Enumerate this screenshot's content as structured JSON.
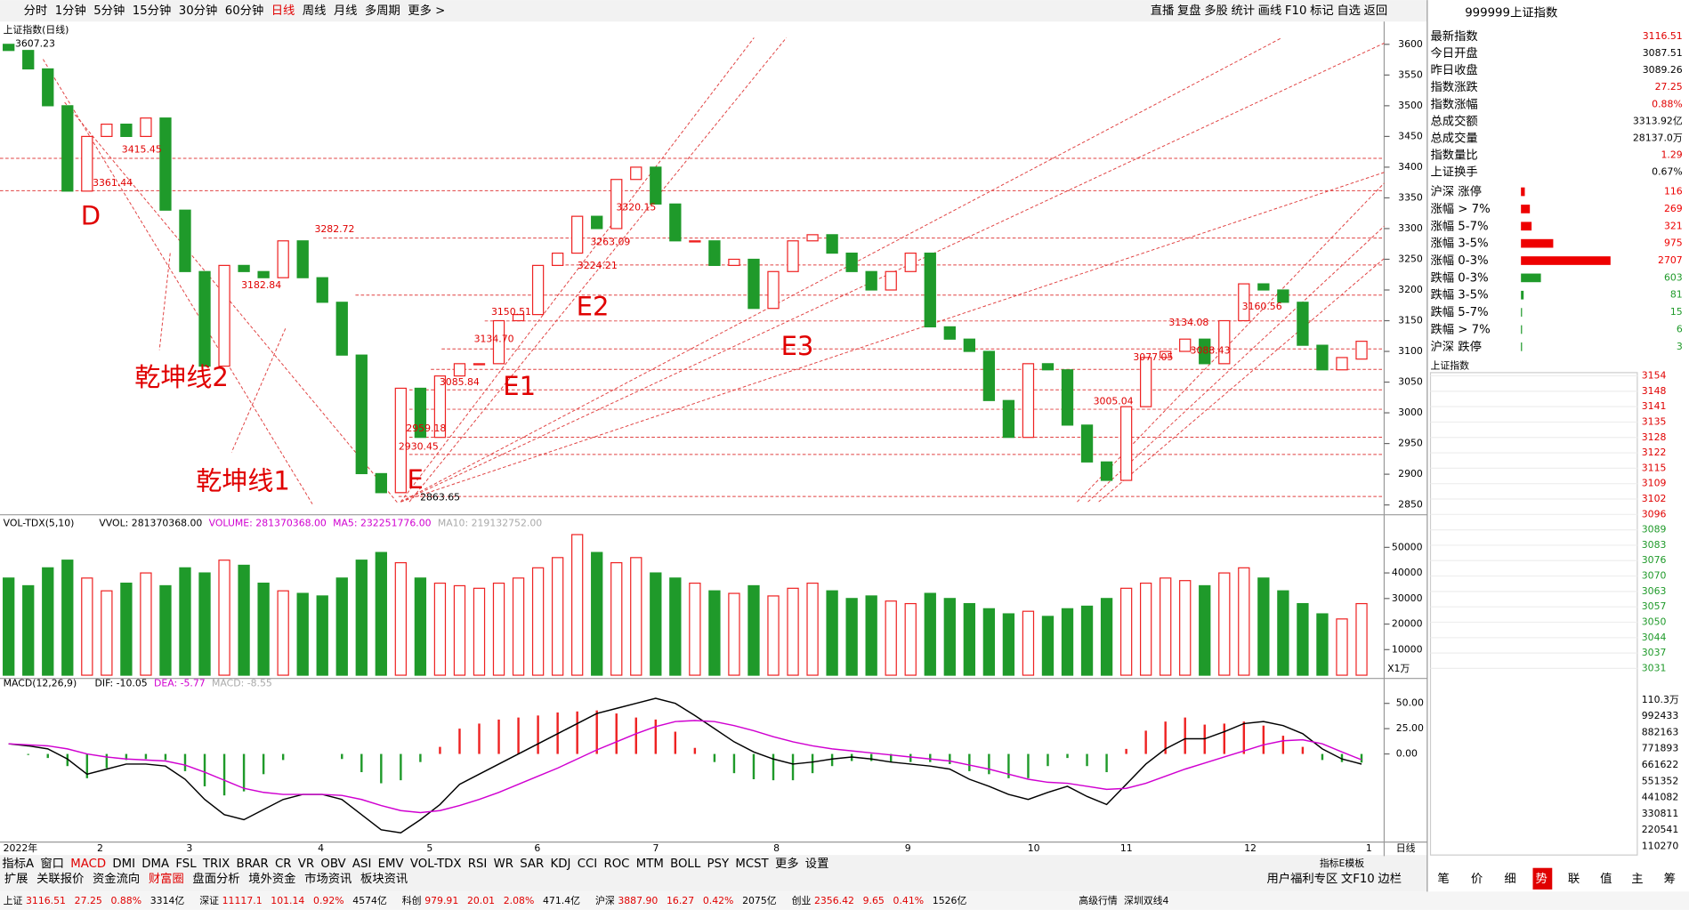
{
  "toolbar": {
    "periods": [
      "分时",
      "1分钟",
      "5分钟",
      "15分钟",
      "30分钟",
      "60分钟",
      {
        "label": "日线",
        "selected": true
      },
      "周线",
      "月线",
      "多周期",
      "更多 >"
    ],
    "tools": [
      "直播",
      "复盘",
      "多股",
      "统计",
      "画线",
      "F10",
      "标记",
      "自选",
      "返回"
    ]
  },
  "chart_data": [
    {
      "type": "candlestick",
      "title": "上证指数(日线)",
      "month_labels": [
        "2022年",
        "2",
        "3",
        "4",
        "5",
        "6",
        "7",
        "8",
        "9",
        "10",
        "11",
        "12",
        "1"
      ],
      "period_label": "日线",
      "open": [
        3600,
        3590,
        3560,
        3500,
        3361,
        3450,
        3470,
        3450,
        3480,
        3330,
        3230,
        3076,
        3240,
        3230,
        3220,
        3280,
        3220,
        3180,
        3094,
        2901,
        2870,
        3040,
        2960,
        3060,
        3080,
        3080,
        3150,
        3160,
        3240,
        3260,
        3320,
        3300,
        3380,
        3400,
        3340,
        3280,
        3280,
        3240,
        3250,
        3170,
        3230,
        3280,
        3290,
        3260,
        3230,
        3200,
        3230,
        3260,
        3140,
        3120,
        3100,
        3020,
        2960,
        3080,
        3070,
        2980,
        2920,
        2890,
        3010,
        3090,
        3100,
        3120,
        3080,
        3150,
        3210,
        3200,
        3180,
        3110,
        3070,
        3087.51
      ],
      "close": [
        3590,
        3560,
        3500,
        3361,
        3450,
        3470,
        3450,
        3480,
        3330,
        3230,
        3076,
        3240,
        3230,
        3220,
        3280,
        3220,
        3180,
        3094,
        2901,
        2870,
        3040,
        2960,
        3060,
        3080,
        3080,
        3150,
        3160,
        3240,
        3260,
        3320,
        3300,
        3380,
        3400,
        3340,
        3280,
        3280,
        3240,
        3250,
        3170,
        3230,
        3280,
        3290,
        3260,
        3230,
        3200,
        3230,
        3260,
        3140,
        3120,
        3100,
        3020,
        2960,
        3080,
        3070,
        2980,
        2920,
        2890,
        3010,
        3090,
        3100,
        3120,
        3080,
        3150,
        3210,
        3200,
        3180,
        3110,
        3070,
        3090,
        3116.51
      ],
      "up_color": "#ee2222",
      "down_color": "#1f9a2a",
      "ylim": [
        2834,
        3637
      ],
      "yticks": [
        2850,
        2900,
        2950,
        3000,
        3050,
        3100,
        3150,
        3200,
        3250,
        3300,
        3350,
        3400,
        3450,
        3500,
        3550,
        3600
      ],
      "annotations": [
        "3607.23",
        "3415.45",
        "3361.44",
        "3282.72",
        "3182.84",
        "3150.51",
        "3134.70",
        "3085.84",
        "3224.21",
        "3263.09",
        "3320.15",
        "2959.18",
        "2930.45",
        "2863.65",
        "3005.04",
        "3077.05",
        "3134.08",
        "3160.56",
        "3088.43"
      ],
      "markers": [
        "D",
        "E",
        "E1",
        "E2",
        "E3",
        "乾坤线2",
        "乾坤线1"
      ]
    },
    {
      "type": "bar",
      "title": "VOL-TDX(5,10)",
      "legend": [
        {
          "label": "VVOL: 281370368.00",
          "color": "#000"
        },
        {
          "label": "VOLUME: 281370368.00",
          "color": "#d000d0"
        },
        {
          "label": "MA5: 232251776.00",
          "color": "#d000d0"
        },
        {
          "label": "MA10: 219132752.00",
          "color": "#aaaaaa"
        }
      ],
      "unit": "X1万",
      "values": [
        38000,
        35000,
        42000,
        45000,
        38000,
        33000,
        36000,
        40000,
        35000,
        42000,
        40000,
        45000,
        43000,
        36000,
        33000,
        32000,
        31000,
        38000,
        45000,
        48000,
        44000,
        38000,
        36000,
        35000,
        34000,
        36000,
        38000,
        42000,
        46000,
        55000,
        48000,
        44000,
        46000,
        40000,
        38000,
        36000,
        33000,
        32000,
        35000,
        31000,
        34000,
        36000,
        33000,
        30000,
        31000,
        29000,
        28000,
        32000,
        30000,
        28000,
        26000,
        24000,
        25000,
        23000,
        26000,
        27000,
        30000,
        34000,
        36000,
        38000,
        37000,
        35000,
        40000,
        42000,
        38000,
        33000,
        28000,
        24000,
        22000,
        28000
      ],
      "ylim": [
        0,
        57700
      ],
      "yticks": [
        10000,
        20000,
        30000,
        40000,
        50000
      ]
    },
    {
      "type": "macd",
      "title": "MACD(12,26,9)",
      "legend": [
        {
          "label": "DIF: -10.05",
          "color": "#000"
        },
        {
          "label": "DEA: -5.77",
          "color": "#d000d0"
        },
        {
          "label": "MACD: -8.55",
          "color": "#aaaaaa"
        }
      ],
      "dif": [
        10,
        8,
        5,
        -5,
        -20,
        -15,
        -10,
        -10,
        -12,
        -25,
        -45,
        -60,
        -65,
        -55,
        -45,
        -40,
        -40,
        -45,
        -60,
        -75,
        -78,
        -65,
        -50,
        -30,
        -20,
        -10,
        0,
        10,
        20,
        30,
        40,
        45,
        50,
        55,
        50,
        38,
        25,
        12,
        2,
        -5,
        -10,
        -8,
        -5,
        -3,
        -5,
        -8,
        -10,
        -12,
        -15,
        -25,
        -32,
        -40,
        -45,
        -38,
        -32,
        -42,
        -50,
        -30,
        -10,
        5,
        15,
        15,
        22,
        30,
        32,
        28,
        20,
        5,
        -5,
        -10.05
      ],
      "dea": [
        10,
        9,
        8,
        5,
        0,
        -3,
        -5,
        -6,
        -7,
        -11,
        -18,
        -26,
        -34,
        -38,
        -40,
        -40,
        -40,
        -41,
        -45,
        -51,
        -56,
        -58,
        -56,
        -51,
        -45,
        -38,
        -30,
        -22,
        -14,
        -5,
        4,
        12,
        20,
        27,
        32,
        33,
        32,
        28,
        23,
        17,
        12,
        8,
        5,
        3,
        1,
        -1,
        -3,
        -5,
        -7,
        -11,
        -15,
        -20,
        -25,
        -28,
        -29,
        -32,
        -35,
        -34,
        -29,
        -22,
        -15,
        -9,
        -3,
        3,
        9,
        13,
        14,
        10,
        2,
        -5.77
      ],
      "hist": [
        0,
        -1,
        -4,
        -12,
        -24,
        -14,
        -6,
        -5,
        -6,
        -17,
        -32,
        -41,
        -37,
        -20,
        -6,
        0,
        0,
        -5,
        -18,
        -29,
        -26,
        -8,
        7,
        25,
        30,
        34,
        36,
        38,
        41,
        42,
        43,
        40,
        36,
        34,
        22,
        6,
        -8,
        -19,
        -25,
        -26,
        -26,
        -19,
        -12,
        -7,
        -7,
        -8,
        -8,
        -8,
        -10,
        -17,
        -20,
        -24,
        -24,
        -12,
        -4,
        -12,
        -18,
        5,
        23,
        32,
        36,
        29,
        30,
        32,
        28,
        18,
        7,
        -6,
        -8,
        -8.55
      ],
      "ylim": [
        -85,
        64
      ],
      "yticks": [
        {
          "value": 0,
          "label": "0.00"
        },
        {
          "value": 25,
          "label": "25.00"
        },
        {
          "value": 50,
          "label": "50.00"
        }
      ]
    }
  ],
  "indicator_tabs": [
    "指标A",
    "窗口",
    {
      "label": "MACD",
      "selected": true
    },
    "DMI",
    "DMA",
    "FSL",
    "TRIX",
    "BRAR",
    "CR",
    "VR",
    "OBV",
    "ASI",
    "EMV",
    "VOL-TDX",
    "RSI",
    "WR",
    "SAR",
    "KDJ",
    "CCI",
    "ROC",
    "MTM",
    "BOLL",
    "PSY",
    "MCST",
    "更多",
    "设置"
  ],
  "template_label": "指标E模板",
  "extension_tabs": [
    "扩展",
    "关联报价",
    "资金流向",
    {
      "label": "财富圈",
      "selected": true
    },
    "盘面分析",
    "境外资金",
    "市场资讯",
    "板块资讯"
  ],
  "extension_right": [
    "用户福利专区",
    "文F10",
    "边栏"
  ],
  "side_panel": {
    "code": "999999",
    "name": "上证指数",
    "quote": [
      {
        "label": "最新指数",
        "value": "3116.51",
        "color": "#e00000"
      },
      {
        "label": "今日开盘",
        "value": "3087.51",
        "color": "#000"
      },
      {
        "label": "昨日收盘",
        "value": "3089.26",
        "color": "#000"
      },
      {
        "label": "指数涨跌",
        "value": "27.25",
        "color": "#e00000"
      },
      {
        "label": "指数涨幅",
        "value": "0.88%",
        "color": "#e00000"
      },
      {
        "label": "总成交额",
        "value": "3313.92亿",
        "color": "#000"
      },
      {
        "label": "总成交量",
        "value": "28137.0万",
        "color": "#000"
      },
      {
        "label": "指数量比",
        "value": "1.29",
        "color": "#e00000"
      },
      {
        "label": "上证换手",
        "value": "0.67%",
        "color": "#000"
      }
    ],
    "breadth": [
      {
        "label": "沪深 涨停",
        "value": 116,
        "color": "#ee0000"
      },
      {
        "label": "涨幅 > 7%",
        "value": 269,
        "color": "#ee0000"
      },
      {
        "label": "涨幅 5-7%",
        "value": 321,
        "color": "#ee0000"
      },
      {
        "label": "涨幅 3-5%",
        "value": 975,
        "color": "#ee0000"
      },
      {
        "label": "涨幅 0-3%",
        "value": 2707,
        "color": "#ee0000"
      },
      {
        "label": "跌幅 0-3%",
        "value": 603,
        "color": "#1f9a2a"
      },
      {
        "label": "跌幅 3-5%",
        "value": 81,
        "color": "#1f9a2a"
      },
      {
        "label": "跌幅 5-7%",
        "value": 15,
        "color": "#1f9a2a"
      },
      {
        "label": "跌幅 > 7%",
        "value": 6,
        "color": "#1f9a2a"
      },
      {
        "label": "沪深 跌停",
        "value": 3,
        "color": "#1f9a2a"
      }
    ],
    "breadth_xlim": [
      0,
      2800
    ],
    "intraday": {
      "title": "上证指数",
      "price_labels": [
        "3154",
        "3148",
        "3141",
        "3135",
        "3128",
        "3122",
        "3115",
        "3109",
        "3102",
        "3096",
        "3089",
        "3083",
        "3076",
        "3070",
        "3063",
        "3057",
        "3050",
        "3044",
        "3037",
        "3031"
      ],
      "volume_labels": [
        "110.3万",
        "992433",
        "882163",
        "771893",
        "661622",
        "551352",
        "441082",
        "330811",
        "220541",
        "110270"
      ]
    },
    "tabs": [
      "笔",
      "价",
      "细",
      {
        "label": "势",
        "selected": true
      },
      "联",
      "值",
      "主",
      "筹"
    ]
  },
  "status": [
    {
      "name": "上证",
      "values": [
        "3116.51",
        "27.25",
        "0.88%",
        "3314亿"
      ]
    },
    {
      "name": "深证",
      "values": [
        "11117.1",
        "101.14",
        "0.92%",
        "4574亿"
      ]
    },
    {
      "name": "科创",
      "values": [
        "979.91",
        "20.01",
        "2.08%",
        "471.4亿"
      ]
    },
    {
      "name": "沪深",
      "values": [
        "3887.90",
        "16.27",
        "0.42%",
        "2075亿"
      ]
    },
    {
      "name": "创业",
      "values": [
        "2356.42",
        "9.65",
        "0.41%",
        "1526亿"
      ]
    }
  ],
  "status_extra": [
    "高级行情",
    "深圳双线4"
  ]
}
